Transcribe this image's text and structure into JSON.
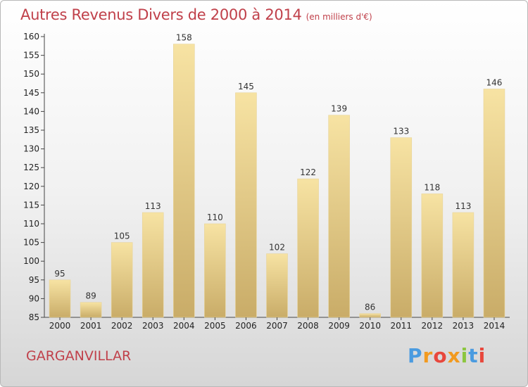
{
  "title": "Autres Revenus Divers de 2000 à 2014",
  "subtitle": "(en milliers d'€)",
  "commune": "GARGANVILLAR",
  "brand": {
    "text": "Proxiti",
    "colors": [
      "#4a9be0",
      "#f29a1f",
      "#e8473c",
      "#f29a1f",
      "#8cc63f",
      "#4a9be0",
      "#e8473c"
    ]
  },
  "colors": {
    "title": "#c0404a",
    "bar_light": "#f7e3a3",
    "bar_dark": "#c9ac68"
  },
  "chart_data": {
    "type": "bar",
    "categories": [
      "2000",
      "2001",
      "2002",
      "2003",
      "2004",
      "2005",
      "2006",
      "2007",
      "2008",
      "2009",
      "2010",
      "2011",
      "2012",
      "2013",
      "2014"
    ],
    "values": [
      95,
      89,
      105,
      113,
      158,
      110,
      145,
      102,
      122,
      139,
      86,
      133,
      118,
      113,
      146
    ],
    "ylim": [
      85,
      160
    ],
    "yticks": [
      85,
      90,
      95,
      100,
      105,
      110,
      115,
      120,
      125,
      130,
      135,
      140,
      145,
      150,
      155,
      160
    ],
    "title": "Autres Revenus Divers de 2000 à 2014",
    "xlabel": "",
    "ylabel": ""
  }
}
